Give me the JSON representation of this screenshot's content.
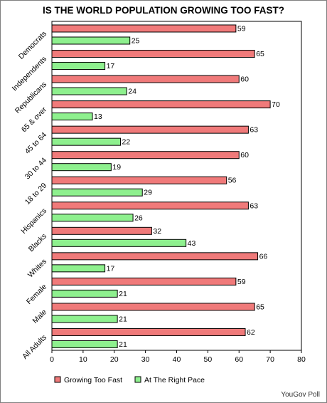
{
  "chart_data": {
    "type": "bar",
    "orientation": "horizontal",
    "title": "IS THE WORLD POPULATION GROWING TOO FAST?",
    "categories": [
      "Democrats",
      "Independents",
      "Republicans",
      "65 & over",
      "45 to 64",
      "30 to 44",
      "18 to 29",
      "Hispanics",
      "Blacks",
      "Whites",
      "Female",
      "Male",
      "All Adults"
    ],
    "series": [
      {
        "name": "Growing Too Fast",
        "color": "#f07a7a",
        "values": [
          59,
          65,
          60,
          70,
          63,
          60,
          56,
          63,
          32,
          66,
          59,
          65,
          62
        ]
      },
      {
        "name": "At The Right Pace",
        "color": "#8ef08e",
        "values": [
          25,
          17,
          24,
          13,
          22,
          19,
          29,
          26,
          43,
          17,
          21,
          21,
          21
        ]
      }
    ],
    "xlim": [
      0,
      80
    ],
    "xticks": [
      0,
      10,
      20,
      30,
      40,
      50,
      60,
      70,
      80
    ],
    "grid": false,
    "legend": "bottom",
    "data_labels": true,
    "source": "YouGov Poll"
  }
}
